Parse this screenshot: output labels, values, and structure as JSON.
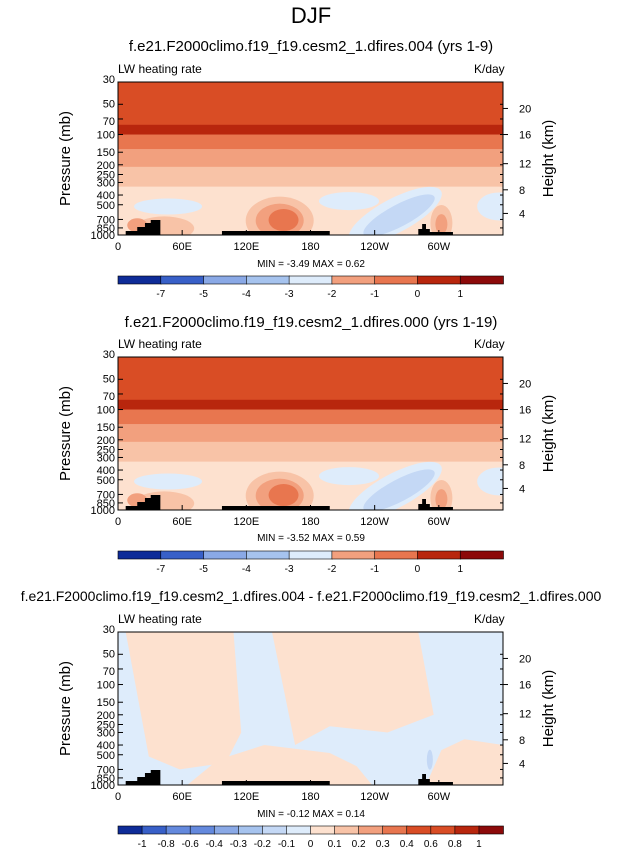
{
  "figure_title": "DJF",
  "colors": {
    "warm": [
      "#fde1cf",
      "#f8c3a7",
      "#f2a07e",
      "#e8764f",
      "#d94d25",
      "#b8260d",
      "#8c0a0a"
    ],
    "cool": [
      "#deecfb",
      "#c4d8f5",
      "#a6c3ee",
      "#8aa9e6",
      "#6489dd",
      "#3860c8",
      "#0e2c98"
    ],
    "terrain": "#000000"
  },
  "chart_data": [
    {
      "type": "contour",
      "title": "f.e21.F2000climo.f19_f19.cesm2_1.dfires.004 (yrs 1-9)",
      "left_label": "LW heating rate",
      "right_label": "K/day",
      "ylabel": "Pressure (mb)",
      "ylabel_right": "Height (km)",
      "pressure_ticks": [
        "30",
        "50",
        "70",
        "100",
        "150",
        "200",
        "250",
        "300",
        "400",
        "500",
        "700",
        "850",
        "1000"
      ],
      "height_ticks": [
        "20",
        "16",
        "12",
        "8",
        "4"
      ],
      "lon_ticks": [
        "0",
        "60E",
        "120E",
        "180",
        "120W",
        "60W"
      ],
      "min_max": "MIN = -3.49   MAX =  0.62",
      "colorbar_labels": [
        "-7",
        "-5",
        "-4",
        "-3",
        "-2",
        "-1",
        "0",
        "1"
      ],
      "field_range": [
        -3.49,
        0.62
      ]
    },
    {
      "type": "contour",
      "title": "f.e21.F2000climo.f19_f19.cesm2_1.dfires.000 (yrs 1-19)",
      "left_label": "LW heating rate",
      "right_label": "K/day",
      "ylabel": "Pressure (mb)",
      "ylabel_right": "Height (km)",
      "pressure_ticks": [
        "30",
        "50",
        "70",
        "100",
        "150",
        "200",
        "250",
        "300",
        "400",
        "500",
        "700",
        "850",
        "1000"
      ],
      "height_ticks": [
        "20",
        "16",
        "12",
        "8",
        "4"
      ],
      "lon_ticks": [
        "0",
        "60E",
        "120E",
        "180",
        "120W",
        "60W"
      ],
      "min_max": "MIN = -3.52   MAX =  0.59",
      "colorbar_labels": [
        "-7",
        "-5",
        "-4",
        "-3",
        "-2",
        "-1",
        "0",
        "1"
      ],
      "field_range": [
        -3.52,
        0.59
      ]
    },
    {
      "type": "contour",
      "title": "f.e21.F2000climo.f19_f19.cesm2_1.dfires.004 - f.e21.F2000climo.f19_f19.cesm2_1.dfires.000",
      "left_label": "LW heating rate",
      "right_label": "K/day",
      "ylabel": "Pressure (mb)",
      "ylabel_right": "Height (km)",
      "pressure_ticks": [
        "30",
        "50",
        "70",
        "100",
        "150",
        "200",
        "250",
        "300",
        "400",
        "500",
        "700",
        "850",
        "1000"
      ],
      "height_ticks": [
        "20",
        "16",
        "12",
        "8",
        "4"
      ],
      "lon_ticks": [
        "0",
        "60E",
        "120E",
        "180",
        "120W",
        "60W"
      ],
      "min_max": "MIN = -0.12   MAX =  0.14",
      "colorbar_labels": [
        "-1",
        "-0.8",
        "-0.6",
        "-0.4",
        "-0.3",
        "-0.2",
        "-0.1",
        "0",
        "0.1",
        "0.2",
        "0.3",
        "0.4",
        "0.6",
        "0.8",
        "1"
      ],
      "field_range": [
        -0.12,
        0.14
      ]
    }
  ]
}
